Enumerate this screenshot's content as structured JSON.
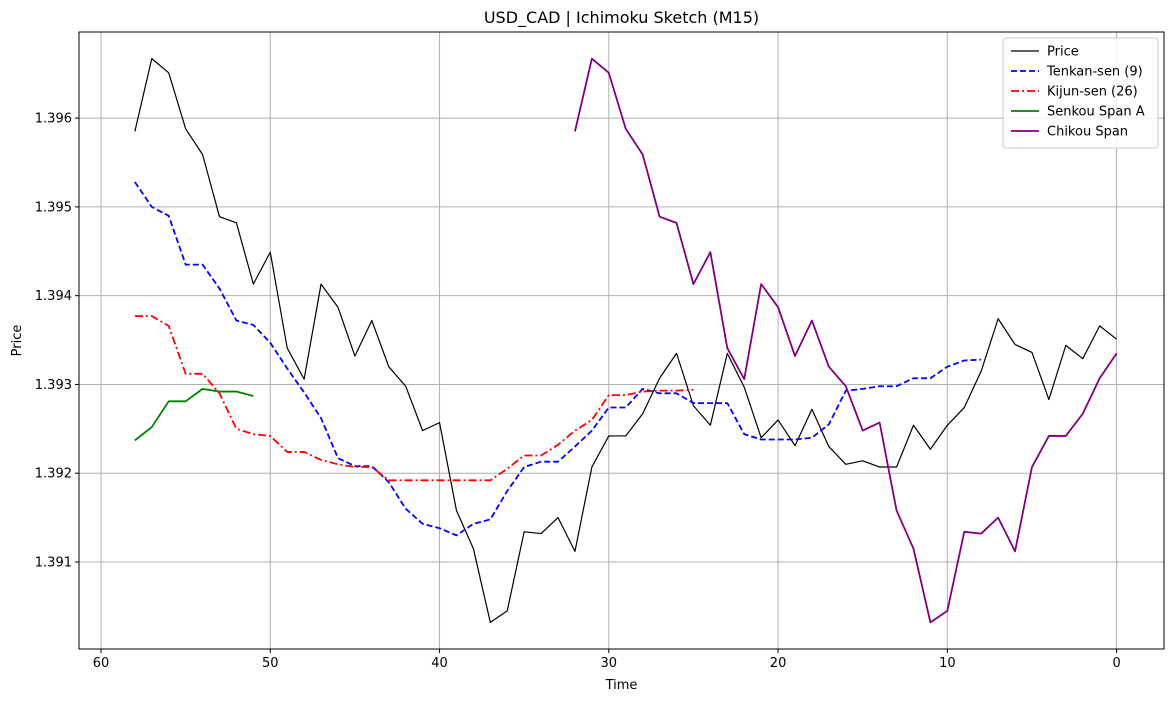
{
  "chart_data": {
    "type": "line",
    "title": "USD_CAD | Ichimoku Sketch (M15)",
    "xlabel": "Time",
    "ylabel": "Price",
    "xlim": [
      61.3,
      -2.8
    ],
    "ylim": [
      1.39002,
      1.39697
    ],
    "xticks": [
      60,
      50,
      40,
      30,
      20,
      10,
      0
    ],
    "yticks": [
      1.391,
      1.392,
      1.393,
      1.394,
      1.395,
      1.396
    ],
    "ytick_labels": [
      "1.391",
      "1.392",
      "1.393",
      "1.394",
      "1.395",
      "1.396"
    ],
    "grid": true,
    "legend_position": "top-right",
    "series": [
      {
        "name": "Price",
        "color": "#000000",
        "dash": "solid",
        "x": [
          58,
          57,
          56,
          55,
          54,
          53,
          52,
          51,
          50,
          49,
          48,
          47,
          46,
          45,
          44,
          43,
          42,
          41,
          40,
          39,
          38,
          37,
          36,
          35,
          34,
          33,
          32,
          31,
          30,
          29,
          28,
          27,
          26,
          25,
          24,
          23,
          22,
          21,
          20,
          19,
          18,
          17,
          16,
          15,
          14,
          13,
          12,
          11,
          10,
          9,
          8,
          7,
          6,
          5,
          4,
          3,
          2,
          1,
          0
        ],
        "y": [
          1.39585,
          1.39667,
          1.39651,
          1.39588,
          1.39559,
          1.39489,
          1.39482,
          1.39413,
          1.39449,
          1.39341,
          1.39306,
          1.39413,
          1.39387,
          1.39332,
          1.39372,
          1.3932,
          1.39298,
          1.39248,
          1.39257,
          1.39158,
          1.39115,
          1.39032,
          1.39045,
          1.39134,
          1.39132,
          1.3915,
          1.39112,
          1.39207,
          1.39242,
          1.39242,
          1.39267,
          1.39307,
          1.39335,
          1.39276,
          1.39254,
          1.39335,
          1.39297,
          1.3924,
          1.3926,
          1.39231,
          1.39272,
          1.3923,
          1.3921,
          1.39214,
          1.39207,
          1.39207,
          1.39254,
          1.39227,
          1.39254,
          1.39274,
          1.39315,
          1.39374,
          1.39345,
          1.39336,
          1.39283,
          1.39344,
          1.39329,
          1.39366,
          1.39351
        ]
      },
      {
        "name": "Tenkan-sen (9)",
        "color": "#0000ff",
        "dash": "dashed",
        "x": [
          58,
          57,
          56,
          55,
          54,
          53,
          52,
          51,
          50,
          49,
          48,
          47,
          46,
          45,
          44,
          43,
          42,
          41,
          40,
          39,
          38,
          37,
          36,
          35,
          34,
          33,
          32,
          31,
          30,
          29,
          28,
          27,
          26,
          25,
          24,
          23,
          22,
          21,
          20,
          19,
          18,
          17,
          16,
          15,
          14,
          13,
          12,
          11,
          10,
          9,
          8
        ],
        "y": [
          1.39528,
          1.395,
          1.3949,
          1.39435,
          1.39435,
          1.39408,
          1.39372,
          1.39367,
          1.39347,
          1.39318,
          1.39291,
          1.39262,
          1.39217,
          1.39208,
          1.39208,
          1.3919,
          1.3916,
          1.39143,
          1.39138,
          1.3913,
          1.39143,
          1.39148,
          1.3918,
          1.39207,
          1.39213,
          1.39213,
          1.3923,
          1.39248,
          1.39274,
          1.39274,
          1.39295,
          1.3929,
          1.3929,
          1.39279,
          1.39279,
          1.39279,
          1.39244,
          1.39238,
          1.39238,
          1.39238,
          1.3924,
          1.39255,
          1.39293,
          1.39295,
          1.39298,
          1.39298,
          1.39307,
          1.39307,
          1.3932,
          1.39327,
          1.39328
        ]
      },
      {
        "name": "Kijun-sen (26)",
        "color": "#ff0000",
        "dash": "dashdot",
        "x": [
          58,
          57,
          56,
          55,
          54,
          53,
          52,
          51,
          50,
          49,
          48,
          47,
          46,
          45,
          44,
          43,
          42,
          41,
          40,
          39,
          38,
          37,
          36,
          35,
          34,
          33,
          32,
          31,
          30,
          29,
          28,
          27,
          26,
          25
        ],
        "y": [
          1.39377,
          1.39377,
          1.39366,
          1.39312,
          1.39312,
          1.3929,
          1.3925,
          1.39244,
          1.39242,
          1.39224,
          1.39224,
          1.39215,
          1.3921,
          1.39207,
          1.39207,
          1.39192,
          1.39192,
          1.39192,
          1.39192,
          1.39192,
          1.39192,
          1.39192,
          1.39205,
          1.3922,
          1.3922,
          1.39232,
          1.39248,
          1.3926,
          1.39288,
          1.39288,
          1.39292,
          1.39293,
          1.39293,
          1.39294
        ]
      },
      {
        "name": "Senkou Span A",
        "color": "#008000",
        "dash": "solid",
        "x": [
          58,
          57,
          56,
          55,
          54,
          53,
          52,
          51
        ],
        "y": [
          1.39237,
          1.39252,
          1.39281,
          1.39281,
          1.39295,
          1.39292,
          1.39292,
          1.39287
        ]
      },
      {
        "name": "Chikou Span",
        "color": "#800080",
        "dash": "solid",
        "x": [
          32,
          31,
          30,
          29,
          28,
          27,
          26,
          25,
          24,
          23,
          22,
          21,
          20,
          19,
          18,
          17,
          16,
          15,
          14,
          13,
          12,
          11,
          10,
          9,
          8,
          7,
          6,
          5,
          4,
          3,
          2,
          1,
          0
        ],
        "y": [
          1.39585,
          1.39667,
          1.39651,
          1.39588,
          1.39559,
          1.39489,
          1.39482,
          1.39413,
          1.39449,
          1.39341,
          1.39306,
          1.39413,
          1.39387,
          1.39332,
          1.39372,
          1.3932,
          1.39298,
          1.39248,
          1.39257,
          1.39158,
          1.39115,
          1.39032,
          1.39045,
          1.39134,
          1.39132,
          1.3915,
          1.39112,
          1.39207,
          1.39242,
          1.39242,
          1.39267,
          1.39307,
          1.39335
        ]
      }
    ]
  }
}
